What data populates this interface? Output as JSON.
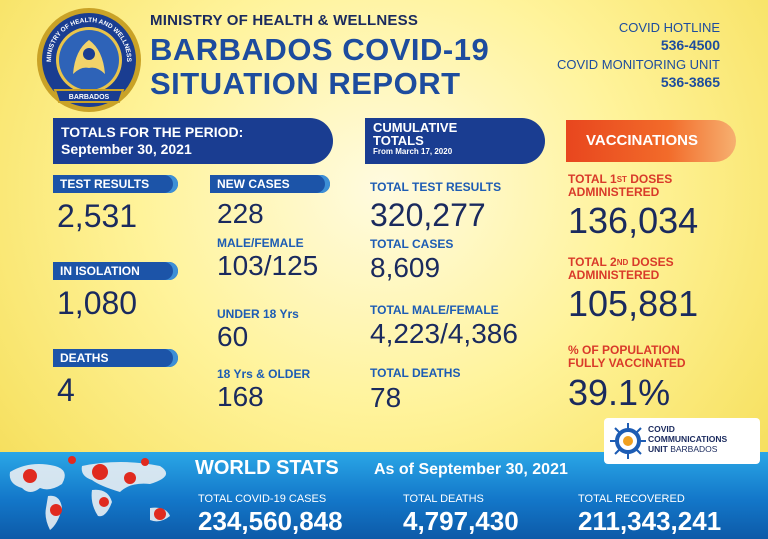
{
  "header": {
    "seal_text_top": "MINISTRY OF HEALTH AND WELLNESS",
    "seal_text_bottom": "BARBADOS",
    "ministry": "MINISTRY OF HEALTH & WELLNESS",
    "title_line1": "BARBADOS COVID-19",
    "title_line2": "SITUATION REPORT",
    "hotline_label": "COVID HOTLINE",
    "hotline_number": "536-4500",
    "monitoring_label": "COVID MONITORING UNIT",
    "monitoring_number": "536-3865"
  },
  "period": {
    "banner_line1": "TOTALS FOR THE PERIOD:",
    "banner_line2": "September 30, 2021",
    "test_results_label": "TEST RESULTS",
    "test_results_value": "2,531",
    "isolation_label": "IN ISOLATION",
    "isolation_value": "1,080",
    "deaths_label": "DEATHS",
    "deaths_value": "4",
    "new_cases_label": "NEW CASES",
    "new_cases_value": "228",
    "male_female_label": "MALE/FEMALE",
    "male_female_value": "103/125",
    "under18_label": "UNDER 18 Yrs",
    "under18_value": "60",
    "over18_label": "18 Yrs & OLDER",
    "over18_value": "168"
  },
  "cumulative": {
    "banner_line1": "CUMULATIVE",
    "banner_line2": "TOTALS",
    "banner_line3": "From March 17, 2020",
    "total_tests_label": "TOTAL TEST RESULTS",
    "total_tests_value": "320,277",
    "total_cases_label": "TOTAL CASES",
    "total_cases_value": "8,609",
    "total_mf_label": "TOTAL MALE/FEMALE",
    "total_mf_value": "4,223/4,386",
    "total_deaths_label": "TOTAL DEATHS",
    "total_deaths_value": "78"
  },
  "vaccinations": {
    "banner": "VACCINATIONS",
    "dose1_pre": "TOTAL 1",
    "dose1_sup": "ST",
    "dose1_post": " DOSES",
    "dose1_line2": "ADMINISTERED",
    "dose1_value": "136,034",
    "dose2_pre": "TOTAL 2",
    "dose2_sup": "ND",
    "dose2_post": " DOSES",
    "dose2_line2": "ADMINISTERED",
    "dose2_value": "105,881",
    "pct_line1": "% OF POPULATION",
    "pct_line2": "FULLY VACCINATED",
    "pct_value": "39.1%"
  },
  "comms_unit": {
    "line1": "COVID",
    "line2": "COMMUNICATIONS",
    "line3_bold": "UNIT",
    "line3_light": " BARBADOS"
  },
  "world": {
    "title": "WORLD STATS",
    "date": "As of September 30, 2021",
    "cases_label": "TOTAL COVID-19 CASES",
    "cases_value": "234,560,848",
    "deaths_label": "TOTAL DEATHS",
    "deaths_value": "4,797,430",
    "recovered_label": "TOTAL RECOVERED",
    "recovered_value": "211,343,241"
  },
  "colors": {
    "navy": "#1a3d91",
    "blue_text": "#1d4c9e",
    "red_label": "#d93a2a",
    "orange_banner": "#e8461e",
    "world_band": "#1377c9"
  }
}
